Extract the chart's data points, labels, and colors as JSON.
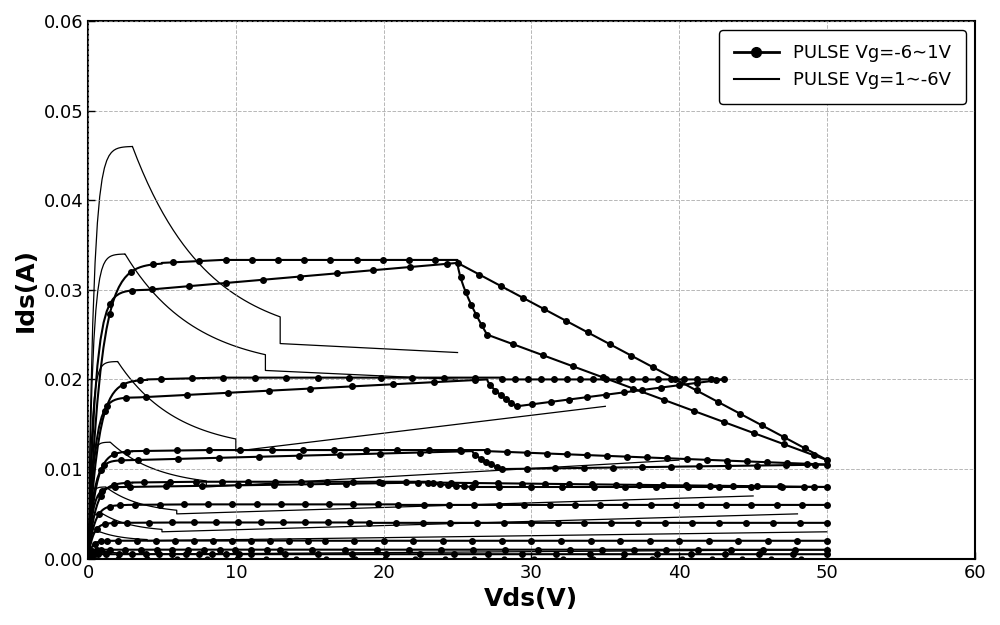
{
  "xlabel": "Vds(V)",
  "ylabel": "Ids(A)",
  "xlim": [
    0,
    60
  ],
  "ylim": [
    0,
    0.06
  ],
  "xticks": [
    0,
    10,
    20,
    30,
    40,
    50,
    60
  ],
  "yticks": [
    0,
    0.01,
    0.02,
    0.03,
    0.04,
    0.05,
    0.06
  ],
  "legend1": "PULSE Vg=-6∼1V",
  "legend2": "PULSE Vg=1∼-6V",
  "background_color": "#ffffff",
  "grid_color": "#999999",
  "curve_color": "#000000",
  "thin_curves": [
    {
      "peak_vds": 3.0,
      "peak_ids": 0.046,
      "flat_ids": 0.024,
      "flat_end_vds": 13,
      "slope_end_vds": 25,
      "slope_end_ids": 0.023
    },
    {
      "peak_vds": 2.5,
      "peak_ids": 0.034,
      "flat_ids": 0.021,
      "flat_end_vds": 12,
      "slope_end_vds": 25,
      "slope_end_ids": 0.02
    },
    {
      "peak_vds": 2.0,
      "peak_ids": 0.022,
      "flat_ids": 0.012,
      "flat_end_vds": 10,
      "slope_end_vds": 35,
      "slope_end_ids": 0.017
    },
    {
      "peak_vds": 1.5,
      "peak_ids": 0.013,
      "flat_ids": 0.008,
      "flat_end_vds": 8,
      "slope_end_vds": 40,
      "slope_end_ids": 0.011
    },
    {
      "peak_vds": 1.2,
      "peak_ids": 0.008,
      "flat_ids": 0.005,
      "flat_end_vds": 6,
      "slope_end_vds": 45,
      "slope_end_ids": 0.007
    },
    {
      "peak_vds": 1.0,
      "peak_ids": 0.005,
      "flat_ids": 0.003,
      "flat_end_vds": 5,
      "slope_end_vds": 48,
      "slope_end_ids": 0.005
    },
    {
      "peak_vds": 0.8,
      "peak_ids": 0.003,
      "flat_ids": 0.002,
      "flat_end_vds": 4,
      "slope_end_vds": 50,
      "slope_end_ids": 0.003
    },
    {
      "peak_vds": 0.5,
      "peak_ids": 0.001,
      "flat_ids": 0.0005,
      "flat_end_vds": 3,
      "slope_end_vds": 50,
      "slope_end_ids": 0.001
    }
  ],
  "dotted_curves": [
    {
      "isat": 0.033,
      "rise_vds": 5,
      "flat_vds": 24,
      "peak_vds": 25,
      "peak_ids": 0.033,
      "end_vds": 50,
      "end_ids": 0.011
    },
    {
      "isat": 0.02,
      "rise_vds": 4,
      "flat_vds": 27,
      "peak_vds": 28,
      "peak_ids": 0.02,
      "end_vds": 43,
      "end_ids": 0.02
    },
    {
      "isat": 0.012,
      "rise_vds": 3,
      "flat_vds": 26,
      "peak_vds": 27,
      "peak_ids": 0.012,
      "end_vds": 50,
      "end_ids": 0.0105
    },
    {
      "isat": 0.0085,
      "rise_vds": 3,
      "flat_vds": 22,
      "peak_vds": 23,
      "peak_ids": 0.0085,
      "end_vds": 50,
      "end_ids": 0.008
    },
    {
      "isat": 0.006,
      "rise_vds": 2.5,
      "flat_vds": 20,
      "peak_vds": 21,
      "peak_ids": 0.006,
      "end_vds": 50,
      "end_ids": 0.006
    },
    {
      "isat": 0.004,
      "rise_vds": 2,
      "flat_vds": 18,
      "peak_vds": 19,
      "peak_ids": 0.004,
      "end_vds": 50,
      "end_ids": 0.004
    },
    {
      "isat": 0.002,
      "rise_vds": 1.5,
      "flat_vds": 15,
      "peak_vds": 16,
      "peak_ids": 0.002,
      "end_vds": 50,
      "end_ids": 0.002
    },
    {
      "isat": 0.001,
      "rise_vds": 1,
      "flat_vds": 12,
      "peak_vds": 13,
      "peak_ids": 0.001,
      "end_vds": 50,
      "end_ids": 0.001
    },
    {
      "isat": 0.0005,
      "rise_vds": 0.8,
      "flat_vds": 10,
      "peak_vds": 11,
      "peak_ids": 0.0005,
      "end_vds": 50,
      "end_ids": 0.0005
    },
    {
      "isat": 0.0,
      "rise_vds": 0.5,
      "flat_vds": 5,
      "peak_vds": 6,
      "peak_ids": 0.0001,
      "end_vds": 50,
      "end_ids": 0.0
    }
  ]
}
